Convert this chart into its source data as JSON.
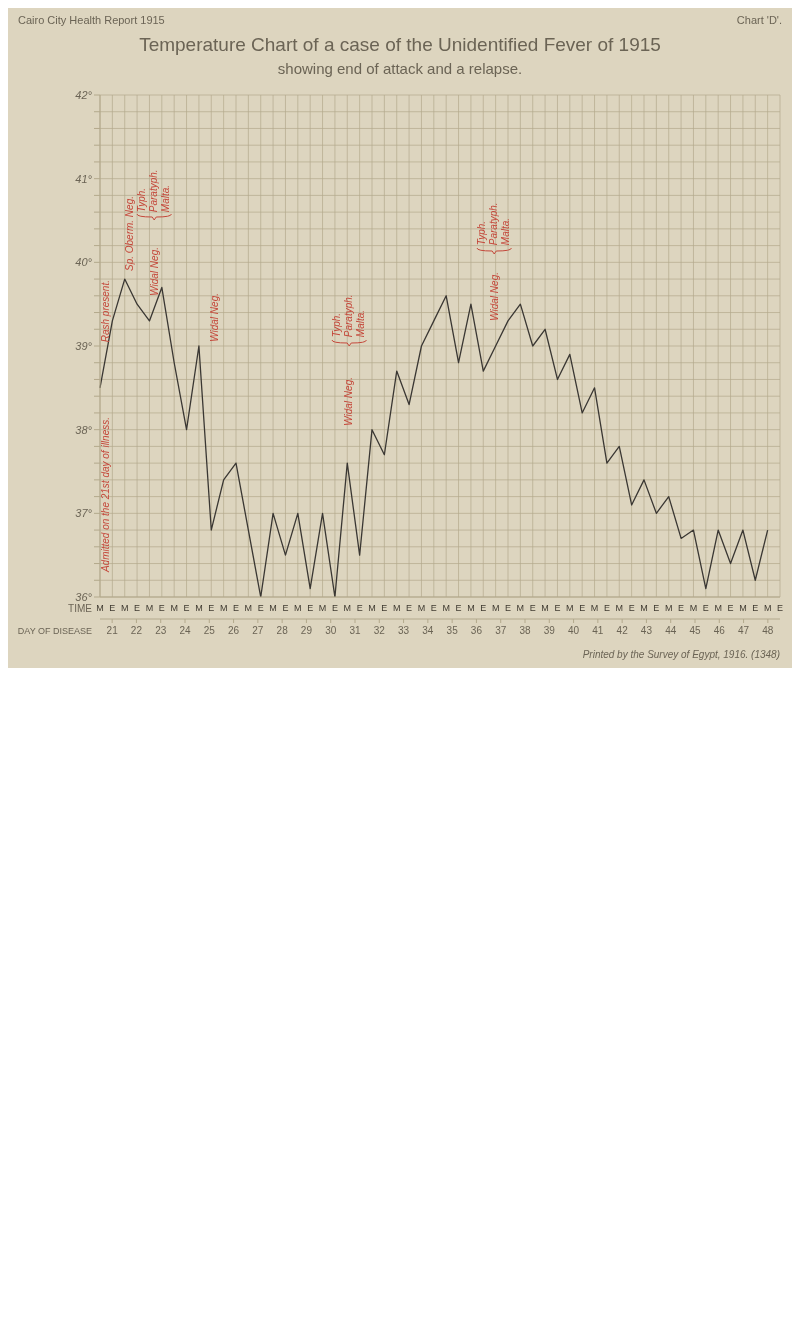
{
  "chart_data": {
    "type": "line",
    "title": "Temperature Chart of a case of the Unidentified Fever of 1915",
    "subtitle": "showing end of attack and a relapse.",
    "xlabel": "TIME",
    "x2label": "DAY OF DISEASE",
    "categories": [
      "M",
      "E",
      "M",
      "E",
      "M",
      "E",
      "M",
      "E",
      "M",
      "E",
      "M",
      "E",
      "M",
      "E",
      "M",
      "E",
      "M",
      "E",
      "M",
      "E",
      "M",
      "E",
      "M",
      "E",
      "M",
      "E",
      "M",
      "E",
      "M",
      "E",
      "M",
      "E",
      "M",
      "E",
      "M",
      "E",
      "M",
      "E",
      "M",
      "E",
      "M",
      "E",
      "M",
      "E",
      "M",
      "E",
      "M",
      "E",
      "M",
      "E",
      "M",
      "E",
      "M",
      "E",
      "M",
      "E"
    ],
    "series": [
      {
        "color": "#3a3733",
        "values": [
          38.5,
          39.3,
          39.8,
          39.5,
          39.3,
          39.7,
          38.8,
          38.0,
          39.0,
          36.8,
          37.4,
          37.6,
          36.8,
          36.0,
          37.0,
          36.5,
          37.0,
          36.1,
          37.0,
          36.0,
          37.6,
          36.5,
          38.0,
          37.7,
          38.7,
          38.3,
          39.0,
          39.3,
          39.6,
          38.8,
          39.5,
          38.7,
          39.0,
          39.3,
          39.5,
          39.0,
          39.2,
          38.6,
          38.9,
          38.2,
          38.5,
          37.6,
          37.8,
          37.1,
          37.4,
          37.0,
          37.2,
          36.7,
          36.8,
          36.1,
          36.8,
          36.4,
          36.8,
          36.2,
          36.8,
          null
        ]
      }
    ],
    "ylim": [
      36,
      42
    ],
    "yticks": [
      {
        "value": 36,
        "label": "36°"
      },
      {
        "value": 36.2,
        "label": null
      },
      {
        "value": 36.4,
        "label": null
      },
      {
        "value": 36.6,
        "label": null
      },
      {
        "value": 36.8,
        "label": null
      },
      {
        "value": 37,
        "label": "37°"
      },
      {
        "value": 37.2,
        "label": null
      },
      {
        "value": 37.4,
        "label": null
      },
      {
        "value": 37.6,
        "label": null
      },
      {
        "value": 37.8,
        "label": null
      },
      {
        "value": 38,
        "label": "38°"
      },
      {
        "value": 38.2,
        "label": null
      },
      {
        "value": 38.4,
        "label": null
      },
      {
        "value": 38.6,
        "label": null
      },
      {
        "value": 38.8,
        "label": null
      },
      {
        "value": 39,
        "label": "39°"
      },
      {
        "value": 39.2,
        "label": null
      },
      {
        "value": 39.4,
        "label": null
      },
      {
        "value": 39.6,
        "label": null
      },
      {
        "value": 39.8,
        "label": null
      },
      {
        "value": 40,
        "label": "40°"
      },
      {
        "value": 40.2,
        "label": null
      },
      {
        "value": 40.4,
        "label": null
      },
      {
        "value": 40.6,
        "label": null
      },
      {
        "value": 40.8,
        "label": null
      },
      {
        "value": 41,
        "label": "41°"
      },
      {
        "value": 41.2,
        "label": null
      },
      {
        "value": 41.4,
        "label": null
      },
      {
        "value": 41.6,
        "label": null
      },
      {
        "value": 41.8,
        "label": null
      },
      {
        "value": 42,
        "label": "42°"
      }
    ],
    "x2lim": [
      20.5,
      48.5
    ],
    "x2ticks": [
      21,
      22,
      23,
      24,
      25,
      26,
      27,
      28,
      29,
      30,
      31,
      32,
      33,
      34,
      35,
      36,
      37,
      38,
      39,
      40,
      41,
      42,
      43,
      44,
      45,
      46,
      47,
      48
    ],
    "grid": true,
    "annotations": [
      "Cairo City Health Report 1915",
      "Chart 'D'.",
      "Admitted on the 21st day of illness.",
      "Rash present.",
      "Sp. Oberm. Neg.",
      "Widal Neg.",
      "Typh. Paratyph. Malta.",
      "Widal Neg.",
      "Widal Neg.",
      "Typh. Paratyph. Malta.",
      "Widal Neg.",
      "Typh. Paratyph. Malta.",
      "Printed by the Survey of Egypt, 1916. (1348)"
    ]
  }
}
